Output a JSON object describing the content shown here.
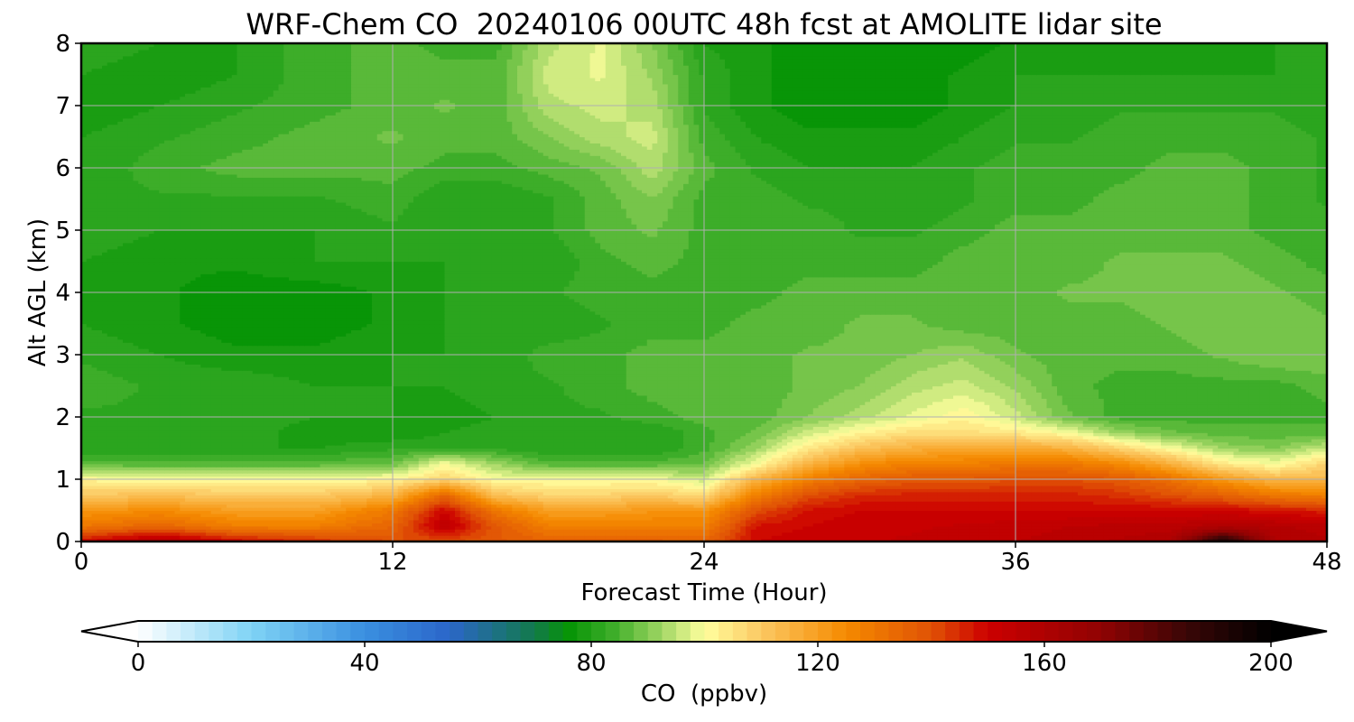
{
  "chart_data": {
    "type": "heatmap",
    "title": "WRF-Chem CO  20240106 00UTC 48h fcst at AMOLITE lidar site",
    "xlabel": "Forecast Time (Hour)",
    "ylabel": "Alt AGL (km)",
    "xlim": [
      0,
      48
    ],
    "ylim": [
      0,
      8
    ],
    "x_ticks": [
      0,
      12,
      24,
      36,
      48
    ],
    "y_ticks": [
      0,
      1,
      2,
      3,
      4,
      5,
      6,
      7,
      8
    ],
    "grid": true,
    "x": [
      0,
      3,
      6,
      9,
      12,
      14,
      16,
      18,
      20,
      22,
      24,
      26,
      28,
      30,
      32,
      34,
      36,
      38,
      40,
      42,
      44,
      46,
      48
    ],
    "y": [
      0.0,
      0.25,
      0.5,
      0.75,
      1.0,
      1.25,
      1.5,
      1.75,
      2.0,
      2.5,
      3.0,
      3.5,
      4.0,
      4.5,
      5.0,
      5.5,
      6.0,
      6.5,
      7.0,
      7.5,
      8.0
    ],
    "z": [
      [
        150,
        160,
        150,
        145,
        140,
        140,
        138,
        136,
        136,
        136,
        135,
        150,
        152,
        152,
        153,
        154,
        155,
        156,
        158,
        160,
        195,
        160,
        158
      ],
      [
        130,
        135,
        128,
        128,
        135,
        155,
        138,
        128,
        128,
        128,
        128,
        148,
        150,
        152,
        152,
        153,
        154,
        155,
        156,
        156,
        160,
        158,
        156
      ],
      [
        122,
        125,
        120,
        120,
        130,
        150,
        130,
        120,
        120,
        122,
        122,
        140,
        148,
        150,
        150,
        150,
        150,
        150,
        150,
        150,
        150,
        148,
        146
      ],
      [
        110,
        112,
        110,
        110,
        115,
        135,
        112,
        108,
        108,
        110,
        106,
        128,
        140,
        145,
        146,
        146,
        146,
        146,
        144,
        140,
        136,
        130,
        128
      ],
      [
        102,
        100,
        100,
        100,
        102,
        108,
        100,
        100,
        100,
        100,
        96,
        115,
        128,
        135,
        138,
        138,
        140,
        140,
        138,
        132,
        122,
        114,
        114
      ],
      [
        86,
        86,
        86,
        86,
        88,
        100,
        92,
        86,
        86,
        86,
        88,
        100,
        115,
        124,
        128,
        128,
        130,
        130,
        126,
        116,
        104,
        100,
        108
      ],
      [
        80,
        80,
        80,
        80,
        82,
        82,
        82,
        80,
        80,
        80,
        84,
        92,
        104,
        112,
        116,
        118,
        118,
        116,
        108,
        100,
        92,
        90,
        96
      ],
      [
        80,
        82,
        82,
        78,
        78,
        80,
        82,
        80,
        80,
        80,
        84,
        88,
        96,
        102,
        106,
        106,
        104,
        100,
        92,
        88,
        86,
        86,
        86
      ],
      [
        82,
        82,
        82,
        80,
        80,
        78,
        80,
        82,
        82,
        84,
        86,
        86,
        90,
        94,
        98,
        102,
        96,
        88,
        84,
        84,
        84,
        84,
        84
      ],
      [
        84,
        82,
        82,
        80,
        80,
        80,
        82,
        82,
        84,
        86,
        86,
        86,
        88,
        90,
        94,
        96,
        92,
        86,
        84,
        84,
        84,
        84,
        86
      ],
      [
        82,
        80,
        78,
        78,
        80,
        80,
        80,
        84,
        84,
        86,
        86,
        86,
        88,
        88,
        90,
        92,
        88,
        86,
        86,
        86,
        88,
        90,
        90
      ],
      [
        80,
        78,
        76,
        76,
        78,
        80,
        80,
        80,
        82,
        84,
        84,
        86,
        86,
        88,
        88,
        86,
        86,
        86,
        86,
        88,
        90,
        90,
        88
      ],
      [
        80,
        78,
        76,
        76,
        78,
        80,
        80,
        82,
        84,
        84,
        84,
        84,
        86,
        86,
        86,
        86,
        86,
        88,
        88,
        90,
        90,
        88,
        86
      ],
      [
        80,
        78,
        78,
        80,
        80,
        80,
        80,
        80,
        84,
        86,
        84,
        84,
        84,
        84,
        84,
        86,
        86,
        86,
        88,
        88,
        88,
        86,
        84
      ],
      [
        82,
        80,
        80,
        80,
        82,
        80,
        80,
        82,
        86,
        88,
        84,
        84,
        84,
        82,
        82,
        84,
        86,
        86,
        86,
        86,
        86,
        84,
        84
      ],
      [
        82,
        82,
        82,
        82,
        84,
        80,
        80,
        82,
        86,
        90,
        84,
        84,
        82,
        82,
        80,
        82,
        84,
        84,
        86,
        86,
        86,
        84,
        82
      ],
      [
        80,
        84,
        86,
        86,
        86,
        84,
        84,
        86,
        88,
        94,
        86,
        82,
        80,
        80,
        80,
        82,
        84,
        84,
        84,
        86,
        86,
        84,
        82
      ],
      [
        80,
        82,
        84,
        86,
        88,
        86,
        86,
        90,
        94,
        96,
        84,
        80,
        78,
        78,
        78,
        80,
        82,
        82,
        84,
        84,
        84,
        84,
        82
      ],
      [
        78,
        80,
        82,
        84,
        86,
        88,
        86,
        94,
        96,
        94,
        82,
        78,
        76,
        76,
        76,
        78,
        80,
        80,
        82,
        82,
        82,
        82,
        80
      ],
      [
        80,
        78,
        80,
        84,
        86,
        86,
        86,
        96,
        98,
        92,
        82,
        78,
        76,
        76,
        76,
        78,
        80,
        80,
        80,
        80,
        80,
        80,
        80
      ],
      [
        82,
        80,
        80,
        84,
        86,
        84,
        84,
        94,
        98,
        90,
        80,
        78,
        76,
        76,
        76,
        76,
        78,
        78,
        78,
        78,
        78,
        80,
        80
      ]
    ],
    "colorbar": {
      "label": "CO  (ppbv)",
      "min": 0,
      "max": 200,
      "ticks": [
        0,
        40,
        80,
        120,
        160,
        200
      ],
      "extend": "both",
      "stops": [
        {
          "v": 0,
          "color": "#ffffff"
        },
        {
          "v": 20,
          "color": "#7fd3f5"
        },
        {
          "v": 40,
          "color": "#3a8fe0"
        },
        {
          "v": 55,
          "color": "#2b66c9"
        },
        {
          "v": 70,
          "color": "#127a4a"
        },
        {
          "v": 76,
          "color": "#069406"
        },
        {
          "v": 84,
          "color": "#3fae2a"
        },
        {
          "v": 92,
          "color": "#9bd460"
        },
        {
          "v": 100,
          "color": "#ffff9e"
        },
        {
          "v": 110,
          "color": "#fcc862"
        },
        {
          "v": 125,
          "color": "#f58a00"
        },
        {
          "v": 140,
          "color": "#e05205"
        },
        {
          "v": 150,
          "color": "#cc0000"
        },
        {
          "v": 170,
          "color": "#900303"
        },
        {
          "v": 185,
          "color": "#3a0606"
        },
        {
          "v": 200,
          "color": "#000000"
        }
      ]
    }
  }
}
